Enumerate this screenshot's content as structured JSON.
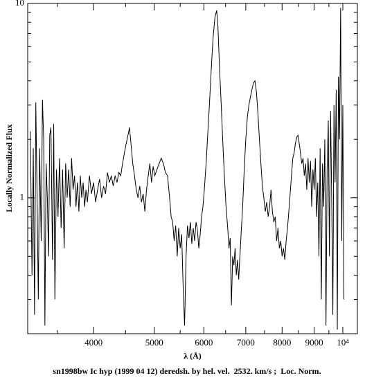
{
  "chart_data": {
    "type": "line",
    "xscale": "log",
    "yscale": "log",
    "xlabel": "λ (Å)",
    "ylabel": "Locally Normalized Flux",
    "caption": "sn1998bw Ic hyp (1999 04 12) deredsh. by hel. vel.  2532. km/s ;  Loc. Norm.",
    "color": "#000000",
    "xlim": [
      3140,
      10550
    ],
    "ylim": [
      0.2,
      10
    ],
    "xticks": [
      4000,
      5000,
      6000,
      7000,
      8000,
      9000,
      {
        "value": 10000,
        "label": "10⁴"
      }
    ],
    "xminorticks": [
      3500,
      4500,
      5500,
      6500,
      7500,
      8500,
      9500
    ],
    "yticks": [
      1,
      10
    ],
    "yminorticks": [
      0.2,
      0.3,
      0.4,
      0.5,
      0.6,
      0.7,
      0.8,
      0.9,
      2,
      3,
      4,
      5,
      6,
      7,
      8,
      9
    ],
    "x": [
      3170,
      3190,
      3205,
      3220,
      3235,
      3250,
      3265,
      3280,
      3300,
      3315,
      3330,
      3345,
      3360,
      3375,
      3390,
      3405,
      3420,
      3440,
      3455,
      3470,
      3490,
      3510,
      3530,
      3550,
      3570,
      3590,
      3610,
      3630,
      3650,
      3670,
      3690,
      3710,
      3730,
      3750,
      3770,
      3790,
      3810,
      3830,
      3850,
      3870,
      3890,
      3910,
      3940,
      3970,
      4000,
      4030,
      4060,
      4090,
      4120,
      4150,
      4180,
      4210,
      4240,
      4270,
      4300,
      4330,
      4360,
      4390,
      4420,
      4450,
      4480,
      4510,
      4540,
      4565,
      4590,
      4620,
      4650,
      4680,
      4710,
      4740,
      4770,
      4800,
      4830,
      4860,
      4890,
      4920,
      4950,
      4980,
      5010,
      5050,
      5090,
      5130,
      5170,
      5210,
      5250,
      5290,
      5320,
      5350,
      5380,
      5410,
      5440,
      5470,
      5500,
      5530,
      5560,
      5590,
      5620,
      5650,
      5680,
      5710,
      5740,
      5770,
      5800,
      5830,
      5860,
      5890,
      5920,
      5950,
      5980,
      6010,
      6050,
      6090,
      6130,
      6170,
      6210,
      6250,
      6290,
      6320,
      6350,
      6390,
      6430,
      6470,
      6510,
      6550,
      6580,
      6610,
      6640,
      6670,
      6700,
      6730,
      6760,
      6790,
      6820,
      6850,
      6880,
      6920,
      6960,
      7000,
      7040,
      7080,
      7120,
      7160,
      7200,
      7240,
      7280,
      7320,
      7360,
      7400,
      7440,
      7480,
      7520,
      7560,
      7600,
      7640,
      7680,
      7720,
      7760,
      7800,
      7840,
      7880,
      7920,
      7960,
      8000,
      8040,
      8080,
      8120,
      8160,
      8200,
      8240,
      8280,
      8320,
      8360,
      8400,
      8440,
      8480,
      8520,
      8560,
      8600,
      8640,
      8680,
      8720,
      8760,
      8800,
      8840,
      8880,
      8920,
      8960,
      9000,
      9040,
      9080,
      9120,
      9160,
      9200,
      9240,
      9280,
      9320,
      9360,
      9400,
      9440,
      9480,
      9520,
      9560,
      9600,
      9640,
      9680,
      9720,
      9760,
      9800,
      9840,
      9880,
      9920,
      9960,
      10000,
      10040
    ],
    "values": [
      2.2,
      0.4,
      1.8,
      0.25,
      3.1,
      1.0,
      0.3,
      1.8,
      0.6,
      3.2,
      2.0,
      0.22,
      1.5,
      1.0,
      0.5,
      2.1,
      2.3,
      0.48,
      2.4,
      0.3,
      1.4,
      0.8,
      1.6,
      0.7,
      1.4,
      0.55,
      1.5,
      1.0,
      1.4,
      0.9,
      1.6,
      1.1,
      1.3,
      0.9,
      1.2,
      0.85,
      1.3,
      1.0,
      1.2,
      0.9,
      1.1,
      0.95,
      1.3,
      1.05,
      1.2,
      0.95,
      1.1,
      1.25,
      1.0,
      1.15,
      1.05,
      1.35,
      1.2,
      1.3,
      1.15,
      1.3,
      1.2,
      1.35,
      1.3,
      1.5,
      1.7,
      1.9,
      2.1,
      2.3,
      1.9,
      1.5,
      1.3,
      1.1,
      1.0,
      1.15,
      0.95,
      1.05,
      0.85,
      1.1,
      1.3,
      1.5,
      1.2,
      1.45,
      1.3,
      1.4,
      1.5,
      1.6,
      1.5,
      1.35,
      1.3,
      1.0,
      0.8,
      0.75,
      0.6,
      0.72,
      0.5,
      0.7,
      0.55,
      0.65,
      0.35,
      0.22,
      0.5,
      0.72,
      0.62,
      0.75,
      0.58,
      0.7,
      0.6,
      0.75,
      0.68,
      0.55,
      0.65,
      0.8,
      0.9,
      1.1,
      1.5,
      2.2,
      3.2,
      4.8,
      6.8,
      8.5,
      9.2,
      7.5,
      5.0,
      3.2,
      2.0,
      1.3,
      0.9,
      0.7,
      0.55,
      0.62,
      0.28,
      0.5,
      0.45,
      0.55,
      0.4,
      0.48,
      0.38,
      0.5,
      0.65,
      0.9,
      1.4,
      2.0,
      2.6,
      3.0,
      3.3,
      3.6,
      3.9,
      4.0,
      3.5,
      2.7,
      2.0,
      1.5,
      1.15,
      1.0,
      0.85,
      0.95,
      0.8,
      0.9,
      1.1,
      0.85,
      0.75,
      0.8,
      0.6,
      0.7,
      0.55,
      0.6,
      0.5,
      0.55,
      0.48,
      0.6,
      0.7,
      0.85,
      1.05,
      1.3,
      1.6,
      1.7,
      1.9,
      2.05,
      2.1,
      1.9,
      1.7,
      1.5,
      1.6,
      1.3,
      1.5,
      1.1,
      1.6,
      1.2,
      1.55,
      0.9,
      1.4,
      1.1,
      1.6,
      0.8,
      1.2,
      0.5,
      1.8,
      0.3,
      1.5,
      0.9,
      2.0,
      0.22,
      1.4,
      2.5,
      0.5,
      2.8,
      1.0,
      0.25,
      3.0,
      1.2,
      3.6,
      0.21,
      4.2,
      2.0,
      9.5,
      0.6,
      3.0,
      0.3
    ]
  }
}
